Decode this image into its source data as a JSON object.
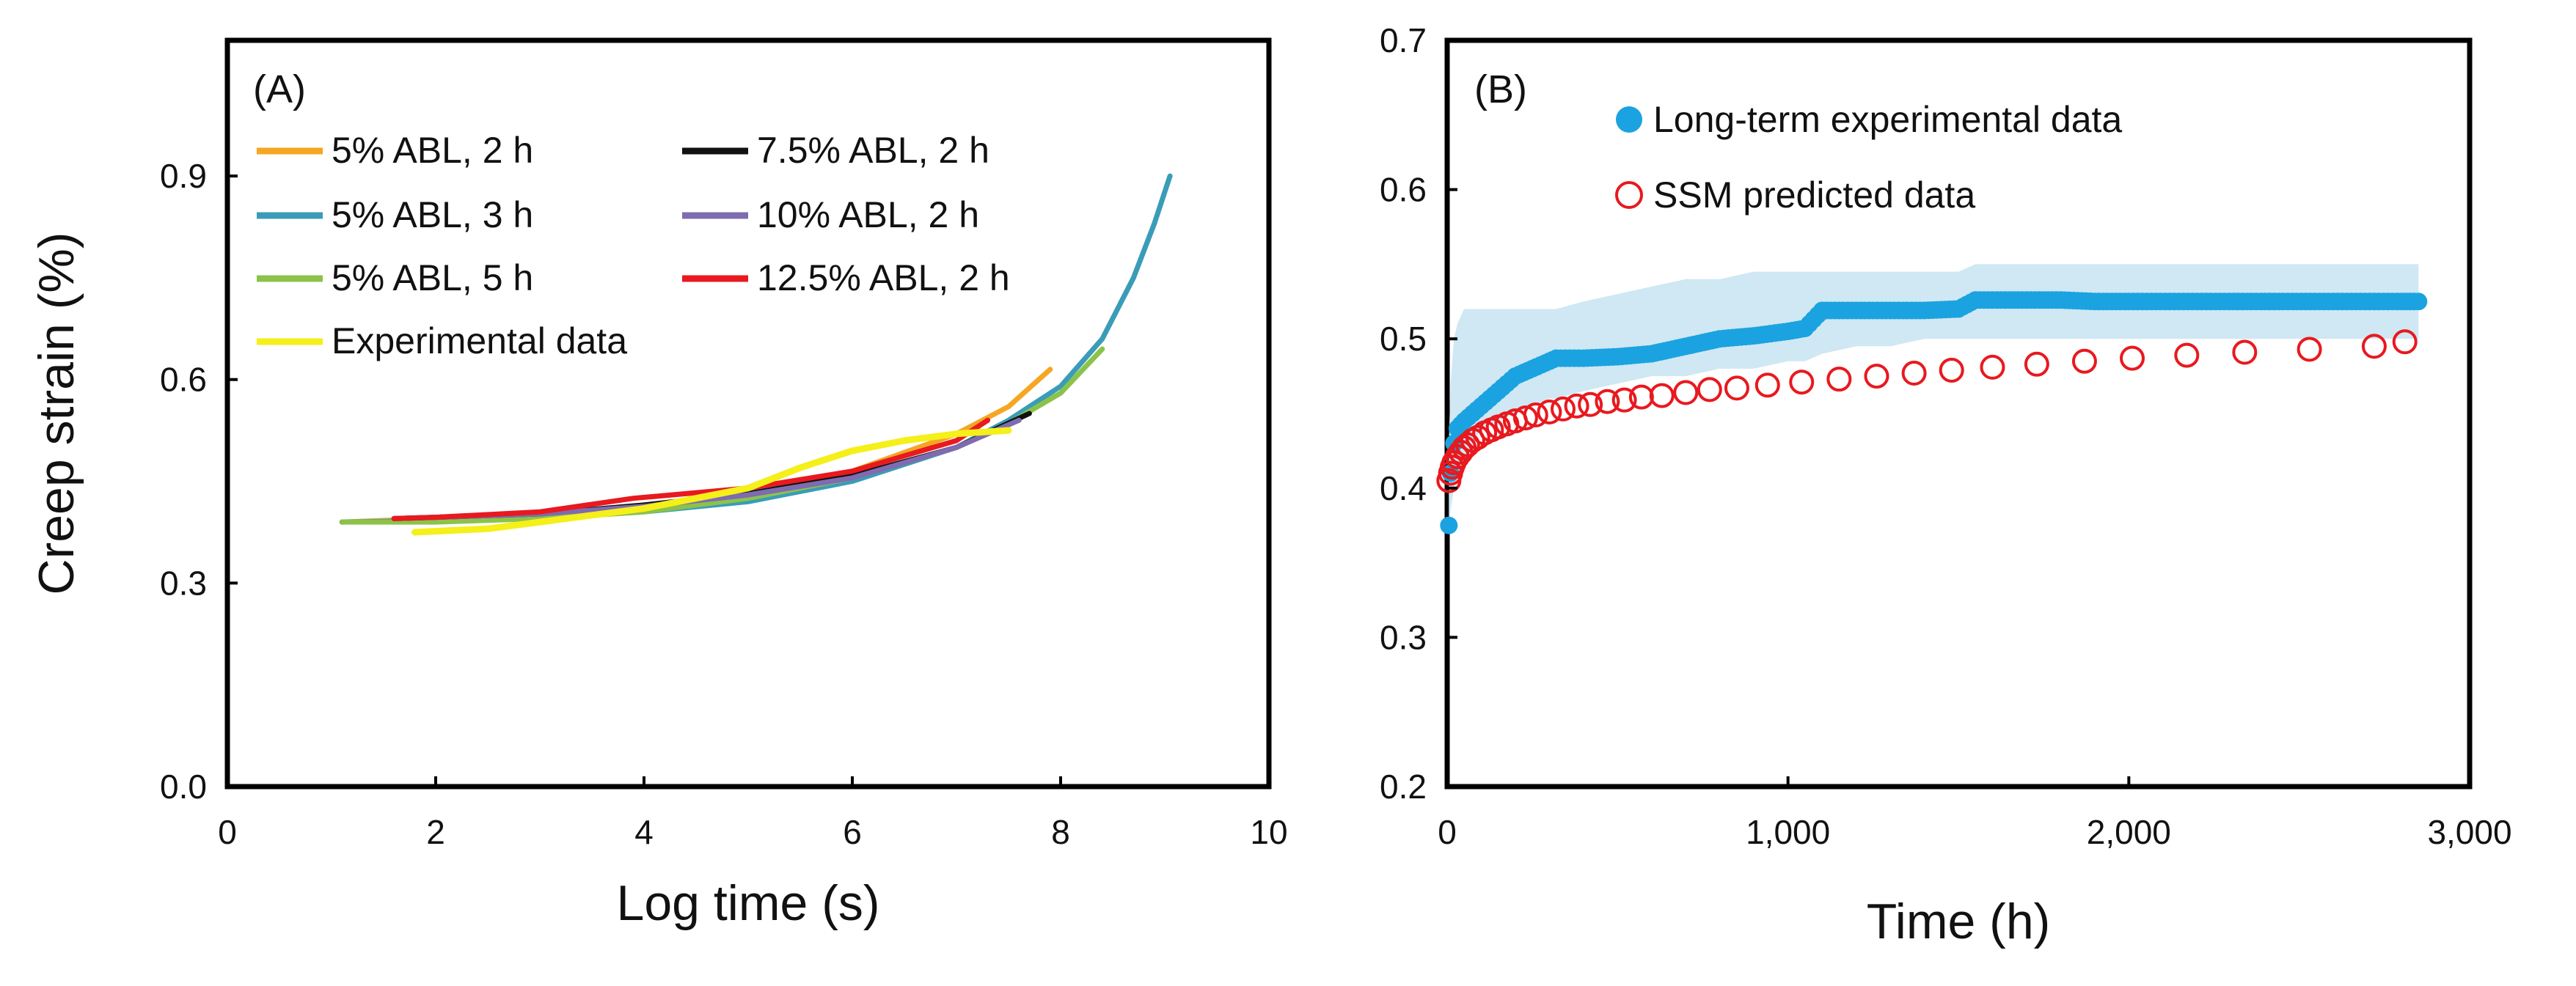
{
  "chart_data": [
    {
      "type": "line",
      "panel_label": "(A)",
      "xlabel": "Log time (s)",
      "ylabel": "Creep strain (%)",
      "xlim": [
        0,
        10
      ],
      "ylim": [
        0.0,
        1.1
      ],
      "xticks": [
        "0",
        "2",
        "4",
        "6",
        "8",
        "10"
      ],
      "yticks": [
        "0.0",
        "0.3",
        "0.6",
        "0.9"
      ],
      "xtick_values": [
        0,
        2,
        4,
        6,
        8,
        10
      ],
      "ytick_values": [
        0.0,
        0.3,
        0.6,
        0.9
      ],
      "legend": "top-left, two columns",
      "series": [
        {
          "name": "5% ABL, 2 h",
          "color": "#f5a623",
          "x": [
            1.1,
            2,
            3,
            4,
            5,
            6,
            7,
            7.5,
            7.9
          ],
          "y": [
            0.39,
            0.395,
            0.4,
            0.41,
            0.43,
            0.465,
            0.52,
            0.56,
            0.615
          ]
        },
        {
          "name": "5% ABL, 3 h",
          "color": "#3a9cb8",
          "x": [
            1.1,
            2,
            3,
            4,
            5,
            6,
            7,
            7.5,
            8,
            8.4,
            8.7,
            8.9,
            9.05
          ],
          "y": [
            0.39,
            0.392,
            0.397,
            0.405,
            0.42,
            0.45,
            0.5,
            0.54,
            0.59,
            0.66,
            0.75,
            0.83,
            0.9
          ]
        },
        {
          "name": "5% ABL, 5 h",
          "color": "#8bc34a",
          "x": [
            1.1,
            2,
            3,
            4,
            5,
            6,
            7,
            7.5,
            8,
            8.4
          ],
          "y": [
            0.39,
            0.39,
            0.395,
            0.405,
            0.425,
            0.455,
            0.5,
            0.535,
            0.58,
            0.645
          ]
        },
        {
          "name": "7.5% ABL, 2 h",
          "color": "#111111",
          "x": [
            1.6,
            2,
            3,
            4,
            5,
            6,
            7,
            7.7
          ],
          "y": [
            0.395,
            0.397,
            0.402,
            0.415,
            0.432,
            0.458,
            0.5,
            0.55
          ]
        },
        {
          "name": "10% ABL, 2 h",
          "color": "#7e6bb0",
          "x": [
            1.6,
            2,
            3,
            4,
            5,
            6,
            7,
            7.6
          ],
          "y": [
            0.395,
            0.397,
            0.402,
            0.413,
            0.43,
            0.455,
            0.5,
            0.54
          ]
        },
        {
          "name": "12.5% ABL, 2 h",
          "color": "#e8191f",
          "x": [
            1.6,
            2,
            3,
            3.9,
            5,
            6,
            7,
            7.3
          ],
          "y": [
            0.395,
            0.397,
            0.405,
            0.425,
            0.44,
            0.465,
            0.51,
            0.54
          ]
        },
        {
          "name": "Experimental data",
          "color": "#f5ef1a",
          "x": [
            1.8,
            2.5,
            3,
            3.5,
            4,
            4.5,
            5,
            5.5,
            6,
            6.5,
            7,
            7.5
          ],
          "y": [
            0.375,
            0.38,
            0.39,
            0.4,
            0.41,
            0.425,
            0.44,
            0.47,
            0.495,
            0.51,
            0.52,
            0.525
          ]
        }
      ]
    },
    {
      "type": "scatter",
      "panel_label": "(B)",
      "xlabel": "Time (h)",
      "ylabel": "",
      "xlim": [
        0,
        3000
      ],
      "ylim": [
        0.2,
        0.7
      ],
      "xticks": [
        "0",
        "1,000",
        "2,000",
        "3,000"
      ],
      "yticks": [
        "0.2",
        "0.3",
        "0.4",
        "0.5",
        "0.6",
        "0.7"
      ],
      "xtick_values": [
        0,
        1000,
        2000,
        3000
      ],
      "ytick_values": [
        0.2,
        0.3,
        0.4,
        0.5,
        0.6,
        0.7
      ],
      "legend": "top-center",
      "series": [
        {
          "name": "Long-term experimental data",
          "color": "#1aa3e0",
          "marker": "filled-circle",
          "x": [
            5,
            10,
            20,
            30,
            50,
            75,
            100,
            150,
            200,
            250,
            300,
            320,
            400,
            500,
            600,
            700,
            800,
            900,
            1000,
            1050,
            1100,
            1200,
            1300,
            1400,
            1500,
            1550,
            1600,
            1700,
            1800,
            1900,
            2000,
            2200,
            2400,
            2600,
            2800,
            2850
          ],
          "y": [
            0.375,
            0.41,
            0.43,
            0.44,
            0.445,
            0.45,
            0.455,
            0.465,
            0.475,
            0.48,
            0.485,
            0.487,
            0.487,
            0.488,
            0.49,
            0.495,
            0.5,
            0.502,
            0.505,
            0.507,
            0.519,
            0.519,
            0.519,
            0.519,
            0.52,
            0.526,
            0.526,
            0.526,
            0.526,
            0.525,
            0.525,
            0.525,
            0.525,
            0.525,
            0.525,
            0.525
          ],
          "band_upper": [
            0.43,
            0.47,
            0.5,
            0.51,
            0.52,
            0.52,
            0.52,
            0.52,
            0.52,
            0.52,
            0.52,
            0.52,
            0.525,
            0.53,
            0.535,
            0.54,
            0.54,
            0.545,
            0.545,
            0.545,
            0.545,
            0.545,
            0.545,
            0.545,
            0.545,
            0.55,
            0.55,
            0.55,
            0.55,
            0.55,
            0.55,
            0.55,
            0.55,
            0.55,
            0.55,
            0.55
          ],
          "band_lower": [
            0.37,
            0.385,
            0.4,
            0.41,
            0.42,
            0.43,
            0.44,
            0.445,
            0.45,
            0.455,
            0.46,
            0.46,
            0.465,
            0.47,
            0.475,
            0.475,
            0.48,
            0.48,
            0.485,
            0.485,
            0.49,
            0.495,
            0.495,
            0.5,
            0.5,
            0.5,
            0.5,
            0.5,
            0.5,
            0.5,
            0.5,
            0.5,
            0.5,
            0.5,
            0.5,
            0.5
          ]
        },
        {
          "name": "SSM predicted data",
          "color": "#e8191f",
          "marker": "open-circle",
          "x": [
            5,
            10,
            15,
            20,
            30,
            40,
            50,
            60,
            75,
            90,
            110,
            130,
            150,
            175,
            200,
            230,
            260,
            300,
            340,
            380,
            420,
            470,
            520,
            570,
            630,
            700,
            770,
            850,
            940,
            1040,
            1150,
            1260,
            1370,
            1480,
            1600,
            1730,
            1870,
            2010,
            2170,
            2340,
            2530,
            2720,
            2810
          ],
          "y": [
            0.405,
            0.41,
            0.414,
            0.417,
            0.421,
            0.424,
            0.427,
            0.429,
            0.432,
            0.434,
            0.437,
            0.439,
            0.441,
            0.443,
            0.445,
            0.447,
            0.449,
            0.451,
            0.453,
            0.455,
            0.456,
            0.458,
            0.459,
            0.461,
            0.462,
            0.464,
            0.466,
            0.467,
            0.469,
            0.471,
            0.473,
            0.475,
            0.477,
            0.479,
            0.481,
            0.483,
            0.485,
            0.487,
            0.489,
            0.491,
            0.493,
            0.495,
            0.498
          ]
        }
      ]
    }
  ]
}
